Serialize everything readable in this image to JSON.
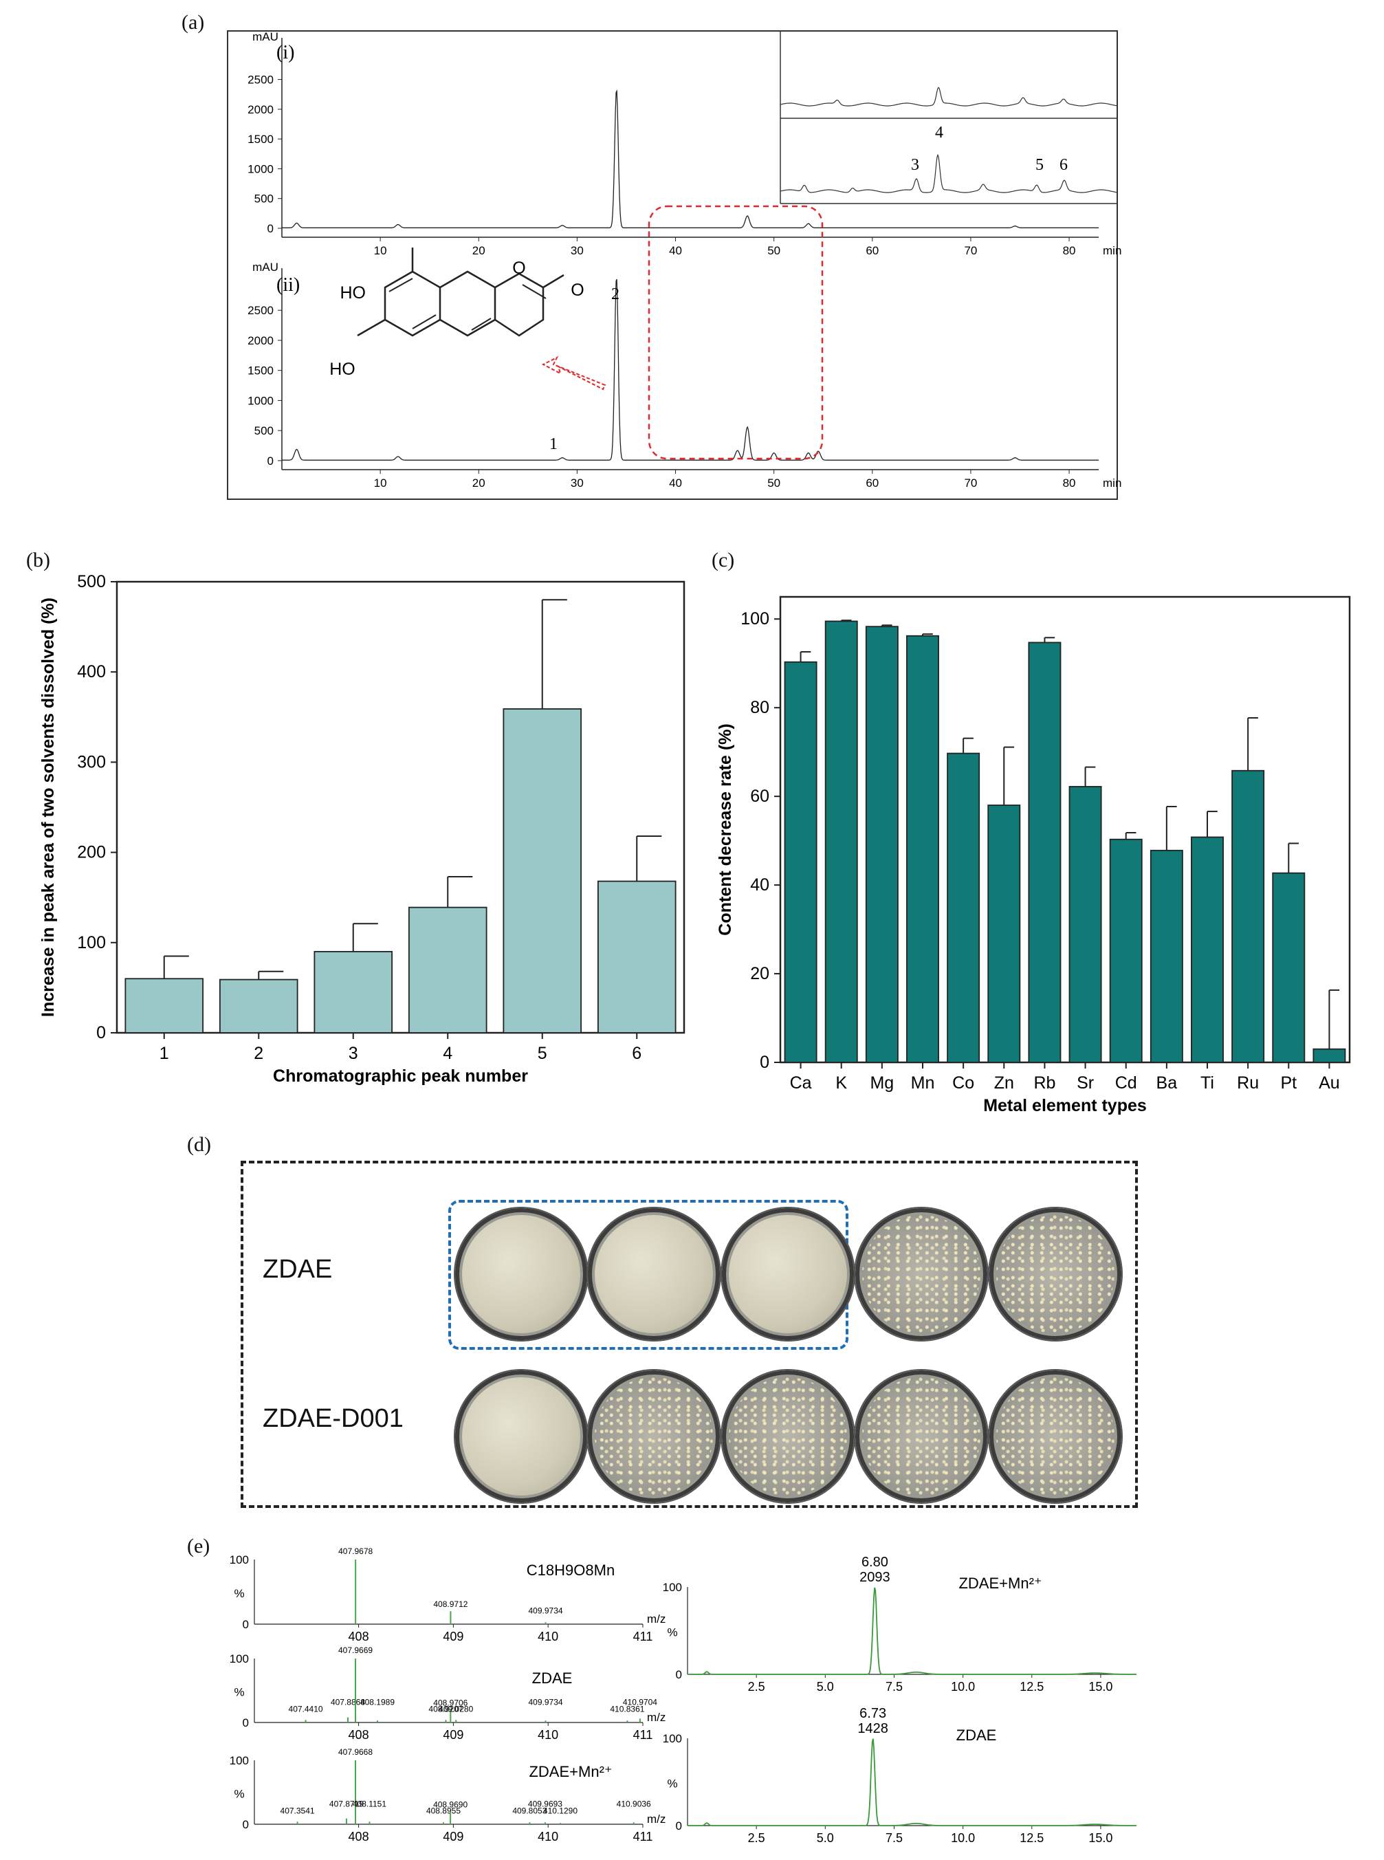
{
  "panel_labels": [
    "(a)",
    "(b)",
    "(c)",
    "(d)",
    "(e)"
  ],
  "chart_data": [
    {
      "id": "a-i",
      "type": "line",
      "subplot_label": "(i)",
      "ylabel": "mAU",
      "xlabel": "min",
      "y_ticks": [
        0,
        500,
        1000,
        1500,
        2000,
        2500
      ],
      "x_ticks": [
        10,
        20,
        30,
        40,
        50,
        60,
        70,
        80
      ],
      "xlim": [
        0,
        83
      ],
      "ylim": [
        -150,
        3200
      ],
      "peaks": [
        {
          "x": 1.5,
          "y": 80
        },
        {
          "x": 11.8,
          "y": 55
        },
        {
          "x": 28.5,
          "y": 40
        },
        {
          "x": 34.0,
          "y": 2330
        },
        {
          "x": 47.3,
          "y": 200
        },
        {
          "x": 53.5,
          "y": 70
        },
        {
          "x": 74.5,
          "y": 30
        }
      ],
      "inset_peak_labels": [
        "3",
        "4",
        "5",
        "6"
      ]
    },
    {
      "id": "a-ii",
      "type": "line",
      "subplot_label": "(ii)",
      "ylabel": "mAU",
      "xlabel": "min",
      "y_ticks": [
        0,
        500,
        1000,
        1500,
        2000,
        2500
      ],
      "x_ticks": [
        10,
        20,
        30,
        40,
        50,
        60,
        70,
        80
      ],
      "xlim": [
        0,
        83
      ],
      "ylim": [
        -150,
        3200
      ],
      "peaks": [
        {
          "x": 1.5,
          "y": 180
        },
        {
          "x": 11.8,
          "y": 60
        },
        {
          "x": 28.5,
          "y": 40
        },
        {
          "x": 34.0,
          "y": 3050
        },
        {
          "x": 46.3,
          "y": 160
        },
        {
          "x": 47.3,
          "y": 550
        },
        {
          "x": 50.0,
          "y": 120
        },
        {
          "x": 53.5,
          "y": 120
        },
        {
          "x": 54.5,
          "y": 150
        },
        {
          "x": 74.5,
          "y": 40
        }
      ],
      "peak_labels": [
        "1",
        "2"
      ],
      "structure_labels": [
        "HO",
        "HO",
        "O",
        "O"
      ]
    },
    {
      "id": "b",
      "type": "bar",
      "categories": [
        "1",
        "2",
        "3",
        "4",
        "5",
        "6"
      ],
      "values": [
        60,
        59,
        90,
        139,
        359,
        168
      ],
      "errors": [
        25,
        9,
        31,
        34,
        121,
        50
      ],
      "xlabel": "Chromatographic peak number",
      "ylabel": "Increase in peak area of two solvents dissolved (%)",
      "ylim": [
        0,
        500
      ],
      "y_ticks": [
        0,
        100,
        200,
        300,
        400,
        500
      ],
      "color": "#9ac8c9"
    },
    {
      "id": "c",
      "type": "bar",
      "categories": [
        "Ca",
        "K",
        "Mg",
        "Mn",
        "Co",
        "Zn",
        "Rb",
        "Sr",
        "Cd",
        "Ba",
        "Ti",
        "Ru",
        "Pt",
        "Au"
      ],
      "values": [
        90.3,
        99.5,
        98.3,
        96.2,
        69.7,
        58.0,
        94.7,
        62.2,
        50.3,
        47.8,
        50.8,
        65.8,
        42.7,
        3.0
      ],
      "errors": [
        2.3,
        0.2,
        0.3,
        0.4,
        3.4,
        13.1,
        1.1,
        4.4,
        1.5,
        9.9,
        5.8,
        11.9,
        6.7,
        13.3
      ],
      "xlabel": "Metal element types",
      "ylabel": "Content decrease rate (%)",
      "ylim": [
        0,
        105
      ],
      "y_ticks": [
        0,
        20,
        40,
        60,
        80,
        100
      ],
      "color": "#127a76"
    },
    {
      "id": "e-ms1",
      "type": "bar",
      "label": "C18H9O8Mn",
      "ylabel": "%",
      "xlabel": "m/z",
      "x_ticks": [
        408,
        409,
        410,
        411
      ],
      "y_ticks": [
        0,
        100
      ],
      "xlim": [
        406.9,
        411
      ],
      "peaks": [
        {
          "mz": 407.9678,
          "intensity": 100,
          "label": "407.9678"
        },
        {
          "mz": 408.9712,
          "intensity": 20,
          "label": "408.9712"
        },
        {
          "mz": 409.9734,
          "intensity": 3,
          "label": "409.9734"
        }
      ]
    },
    {
      "id": "e-ms2",
      "type": "bar",
      "label": "ZDAE",
      "ylabel": "%",
      "xlabel": "m/z",
      "x_ticks": [
        408,
        409,
        410,
        411
      ],
      "y_ticks": [
        0,
        100
      ],
      "xlim": [
        406.9,
        411
      ],
      "peaks": [
        {
          "mz": 407.441,
          "intensity": 4,
          "label": "407.4410"
        },
        {
          "mz": 407.8868,
          "intensity": 8,
          "label": "407.8868"
        },
        {
          "mz": 407.9669,
          "intensity": 100,
          "label": "407.9669"
        },
        {
          "mz": 408.1989,
          "intensity": 3,
          "label": "408.1989"
        },
        {
          "mz": 408.9207,
          "intensity": 4,
          "label": "408.9207"
        },
        {
          "mz": 408.9706,
          "intensity": 20,
          "label": "408.9706"
        },
        {
          "mz": 409.028,
          "intensity": 4,
          "label": "409.0280"
        },
        {
          "mz": 409.9734,
          "intensity": 3,
          "label": "409.9734"
        },
        {
          "mz": 410.8361,
          "intensity": 3,
          "label": "410.8361"
        },
        {
          "mz": 410.9704,
          "intensity": 6,
          "label": "410.9704"
        }
      ]
    },
    {
      "id": "e-ms3",
      "type": "bar",
      "label": "ZDAE+Mn²⁺",
      "ylabel": "%",
      "xlabel": "m/z",
      "x_ticks": [
        408,
        409,
        410,
        411
      ],
      "y_ticks": [
        0,
        100
      ],
      "xlim": [
        406.9,
        411
      ],
      "peaks": [
        {
          "mz": 407.3541,
          "intensity": 4,
          "label": "407.3541"
        },
        {
          "mz": 407.8719,
          "intensity": 9,
          "label": "407.8719"
        },
        {
          "mz": 407.9668,
          "intensity": 100,
          "label": "407.9668"
        },
        {
          "mz": 408.1151,
          "intensity": 4,
          "label": "408.1151"
        },
        {
          "mz": 408.8955,
          "intensity": 3,
          "label": "408.8955"
        },
        {
          "mz": 408.969,
          "intensity": 20,
          "label": "408.9690"
        },
        {
          "mz": 409.8053,
          "intensity": 3,
          "label": "409.8053"
        },
        {
          "mz": 409.9693,
          "intensity": 3,
          "label": "409.9693"
        },
        {
          "mz": 410.129,
          "intensity": 2,
          "label": "410.1290"
        },
        {
          "mz": 410.9036,
          "intensity": 3,
          "label": "410.9036"
        }
      ]
    },
    {
      "id": "e-lc1",
      "type": "line",
      "label": "ZDAE+Mn²⁺",
      "ylabel": "%",
      "x_ticks": [
        2.5,
        5.0,
        7.5,
        10.0,
        12.5,
        15.0
      ],
      "y_ticks": [
        0,
        100
      ],
      "xlim": [
        0,
        16.3
      ],
      "peak": {
        "x": 6.8,
        "y": 100,
        "label_rt": "6.80",
        "label_area": "2093"
      }
    },
    {
      "id": "e-lc2",
      "type": "line",
      "label": "ZDAE",
      "ylabel": "%",
      "x_ticks": [
        2.5,
        5.0,
        7.5,
        10.0,
        12.5,
        15.0
      ],
      "y_ticks": [
        0,
        100
      ],
      "xlim": [
        0,
        16.3
      ],
      "peak": {
        "x": 6.73,
        "y": 100,
        "label_rt": "6.73",
        "label_area": "1428"
      }
    }
  ],
  "plates": {
    "rows": [
      {
        "label": "ZDAE",
        "plates": [
          "empty",
          "empty",
          "empty",
          "colonies",
          "colonies"
        ]
      },
      {
        "label": "ZDAE-D001",
        "plates": [
          "empty",
          "colonies",
          "colonies",
          "colonies",
          "colonies"
        ]
      }
    ]
  }
}
